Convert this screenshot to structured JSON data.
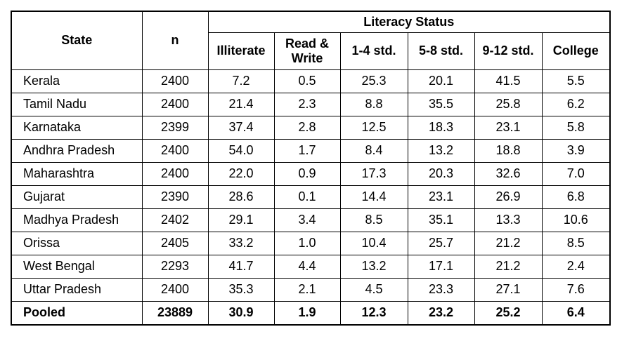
{
  "table": {
    "headers": {
      "state": "State",
      "n": "n",
      "group": "Literacy Status",
      "cols": [
        "Illiterate",
        "Read &\nWrite",
        "1-4 std.",
        "5-8 std.",
        "9-12 std.",
        "College"
      ]
    },
    "rows": [
      {
        "state": "Kerala",
        "n": "2400",
        "values": [
          "7.2",
          "0.5",
          "25.3",
          "20.1",
          "41.5",
          "5.5"
        ]
      },
      {
        "state": "Tamil Nadu",
        "n": "2400",
        "values": [
          "21.4",
          "2.3",
          "8.8",
          "35.5",
          "25.8",
          "6.2"
        ]
      },
      {
        "state": "Karnataka",
        "n": "2399",
        "values": [
          "37.4",
          "2.8",
          "12.5",
          "18.3",
          "23.1",
          "5.8"
        ]
      },
      {
        "state": "Andhra Pradesh",
        "n": "2400",
        "values": [
          "54.0",
          "1.7",
          "8.4",
          "13.2",
          "18.8",
          "3.9"
        ]
      },
      {
        "state": "Maharashtra",
        "n": "2400",
        "values": [
          "22.0",
          "0.9",
          "17.3",
          "20.3",
          "32.6",
          "7.0"
        ]
      },
      {
        "state": "Gujarat",
        "n": "2390",
        "values": [
          "28.6",
          "0.1",
          "14.4",
          "23.1",
          "26.9",
          "6.8"
        ]
      },
      {
        "state": "Madhya Pradesh",
        "n": "2402",
        "values": [
          "29.1",
          "3.4",
          "8.5",
          "35.1",
          "13.3",
          "10.6"
        ]
      },
      {
        "state": "Orissa",
        "n": "2405",
        "values": [
          "33.2",
          "1.0",
          "10.4",
          "25.7",
          "21.2",
          "8.5"
        ]
      },
      {
        "state": "West Bengal",
        "n": "2293",
        "values": [
          "41.7",
          "4.4",
          "13.2",
          "17.1",
          "21.2",
          "2.4"
        ]
      },
      {
        "state": "Uttar Pradesh",
        "n": "2400",
        "values": [
          "35.3",
          "2.1",
          "4.5",
          "23.3",
          "27.1",
          "7.6"
        ]
      }
    ],
    "pooled": {
      "state": "Pooled",
      "n": "23889",
      "values": [
        "30.9",
        "1.9",
        "12.3",
        "23.2",
        "25.2",
        "6.4"
      ]
    }
  }
}
